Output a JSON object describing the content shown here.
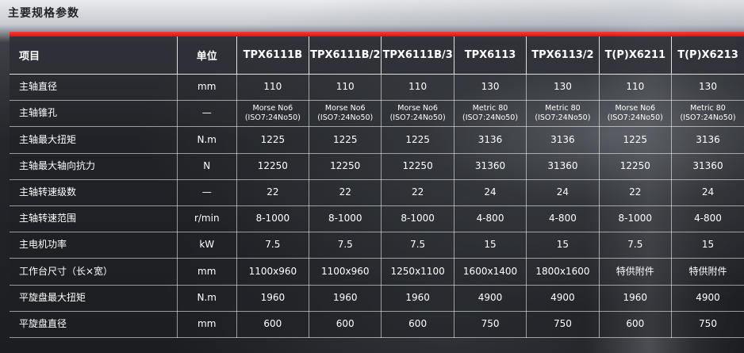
{
  "page_title": "主要规格参数",
  "table": {
    "header": {
      "item": "项目",
      "unit": "单位",
      "models": [
        "TPX6111B",
        "TPX6111B/2",
        "TPX6111B/3",
        "TPX6113",
        "TPX6113/2",
        "T(P)X6211",
        "T(P)X6213"
      ]
    },
    "rows": [
      {
        "item": "主轴直径",
        "unit": "mm",
        "values": [
          [
            "110"
          ],
          [
            "110"
          ],
          [
            "110"
          ],
          [
            "130"
          ],
          [
            "130"
          ],
          [
            "110"
          ],
          [
            "130"
          ]
        ]
      },
      {
        "item": "主轴锥孔",
        "unit": "—",
        "values": [
          [
            "Morse No6",
            "(ISO7:24No50)"
          ],
          [
            "Morse No6",
            "(ISO7:24No50)"
          ],
          [
            "Morse No6",
            "(ISO7:24No50)"
          ],
          [
            "Metric 80",
            "(ISO7:24No50)"
          ],
          [
            "Metric 80",
            "(ISO7:24No50)"
          ],
          [
            "Morse No6",
            "(ISO7:24No50)"
          ],
          [
            "Metric 80",
            "(ISO7:24No50)"
          ]
        ]
      },
      {
        "item": "主轴最大扭矩",
        "unit": "N.m",
        "values": [
          [
            "1225"
          ],
          [
            "1225"
          ],
          [
            "1225"
          ],
          [
            "3136"
          ],
          [
            "3136"
          ],
          [
            "1225"
          ],
          [
            "3136"
          ]
        ]
      },
      {
        "item": "主轴最大轴向抗力",
        "unit": "N",
        "values": [
          [
            "12250"
          ],
          [
            "12250"
          ],
          [
            "12250"
          ],
          [
            "31360"
          ],
          [
            "31360"
          ],
          [
            "12250"
          ],
          [
            "31360"
          ]
        ]
      },
      {
        "item": "主轴转速级数",
        "unit": "—",
        "values": [
          [
            "22"
          ],
          [
            "22"
          ],
          [
            "22"
          ],
          [
            "24"
          ],
          [
            "24"
          ],
          [
            "22"
          ],
          [
            "24"
          ]
        ]
      },
      {
        "item": "主轴转速范围",
        "unit": "r/min",
        "values": [
          [
            "8-1000"
          ],
          [
            "8-1000"
          ],
          [
            "8-1000"
          ],
          [
            "4-800"
          ],
          [
            "4-800"
          ],
          [
            "8-1000"
          ],
          [
            "4-800"
          ]
        ]
      },
      {
        "item": "主电机功率",
        "unit": "kW",
        "values": [
          [
            "7.5"
          ],
          [
            "7.5"
          ],
          [
            "7.5"
          ],
          [
            "15"
          ],
          [
            "15"
          ],
          [
            "7.5"
          ],
          [
            "15"
          ]
        ]
      },
      {
        "item": "工作台尺寸（长×宽）",
        "unit": "mm",
        "values": [
          [
            "1100x960"
          ],
          [
            "1100x960"
          ],
          [
            "1250x1100"
          ],
          [
            "1600x1400"
          ],
          [
            "1800x1600"
          ],
          [
            "特供附件"
          ],
          [
            "特供附件"
          ]
        ]
      },
      {
        "item": "平旋盘最大扭矩",
        "unit": "N.m",
        "values": [
          [
            "1960"
          ],
          [
            "1960"
          ],
          [
            "1960"
          ],
          [
            "4900"
          ],
          [
            "4900"
          ],
          [
            "1960"
          ],
          [
            "4900"
          ]
        ]
      },
      {
        "item": "平旋盘直径",
        "unit": "mm",
        "values": [
          [
            "600"
          ],
          [
            "600"
          ],
          [
            "600"
          ],
          [
            "750"
          ],
          [
            "750"
          ],
          [
            "600"
          ],
          [
            "750"
          ]
        ]
      }
    ]
  },
  "colors": {
    "accent_red": "#e01e1e",
    "header_bg": "#2d2f36"
  }
}
